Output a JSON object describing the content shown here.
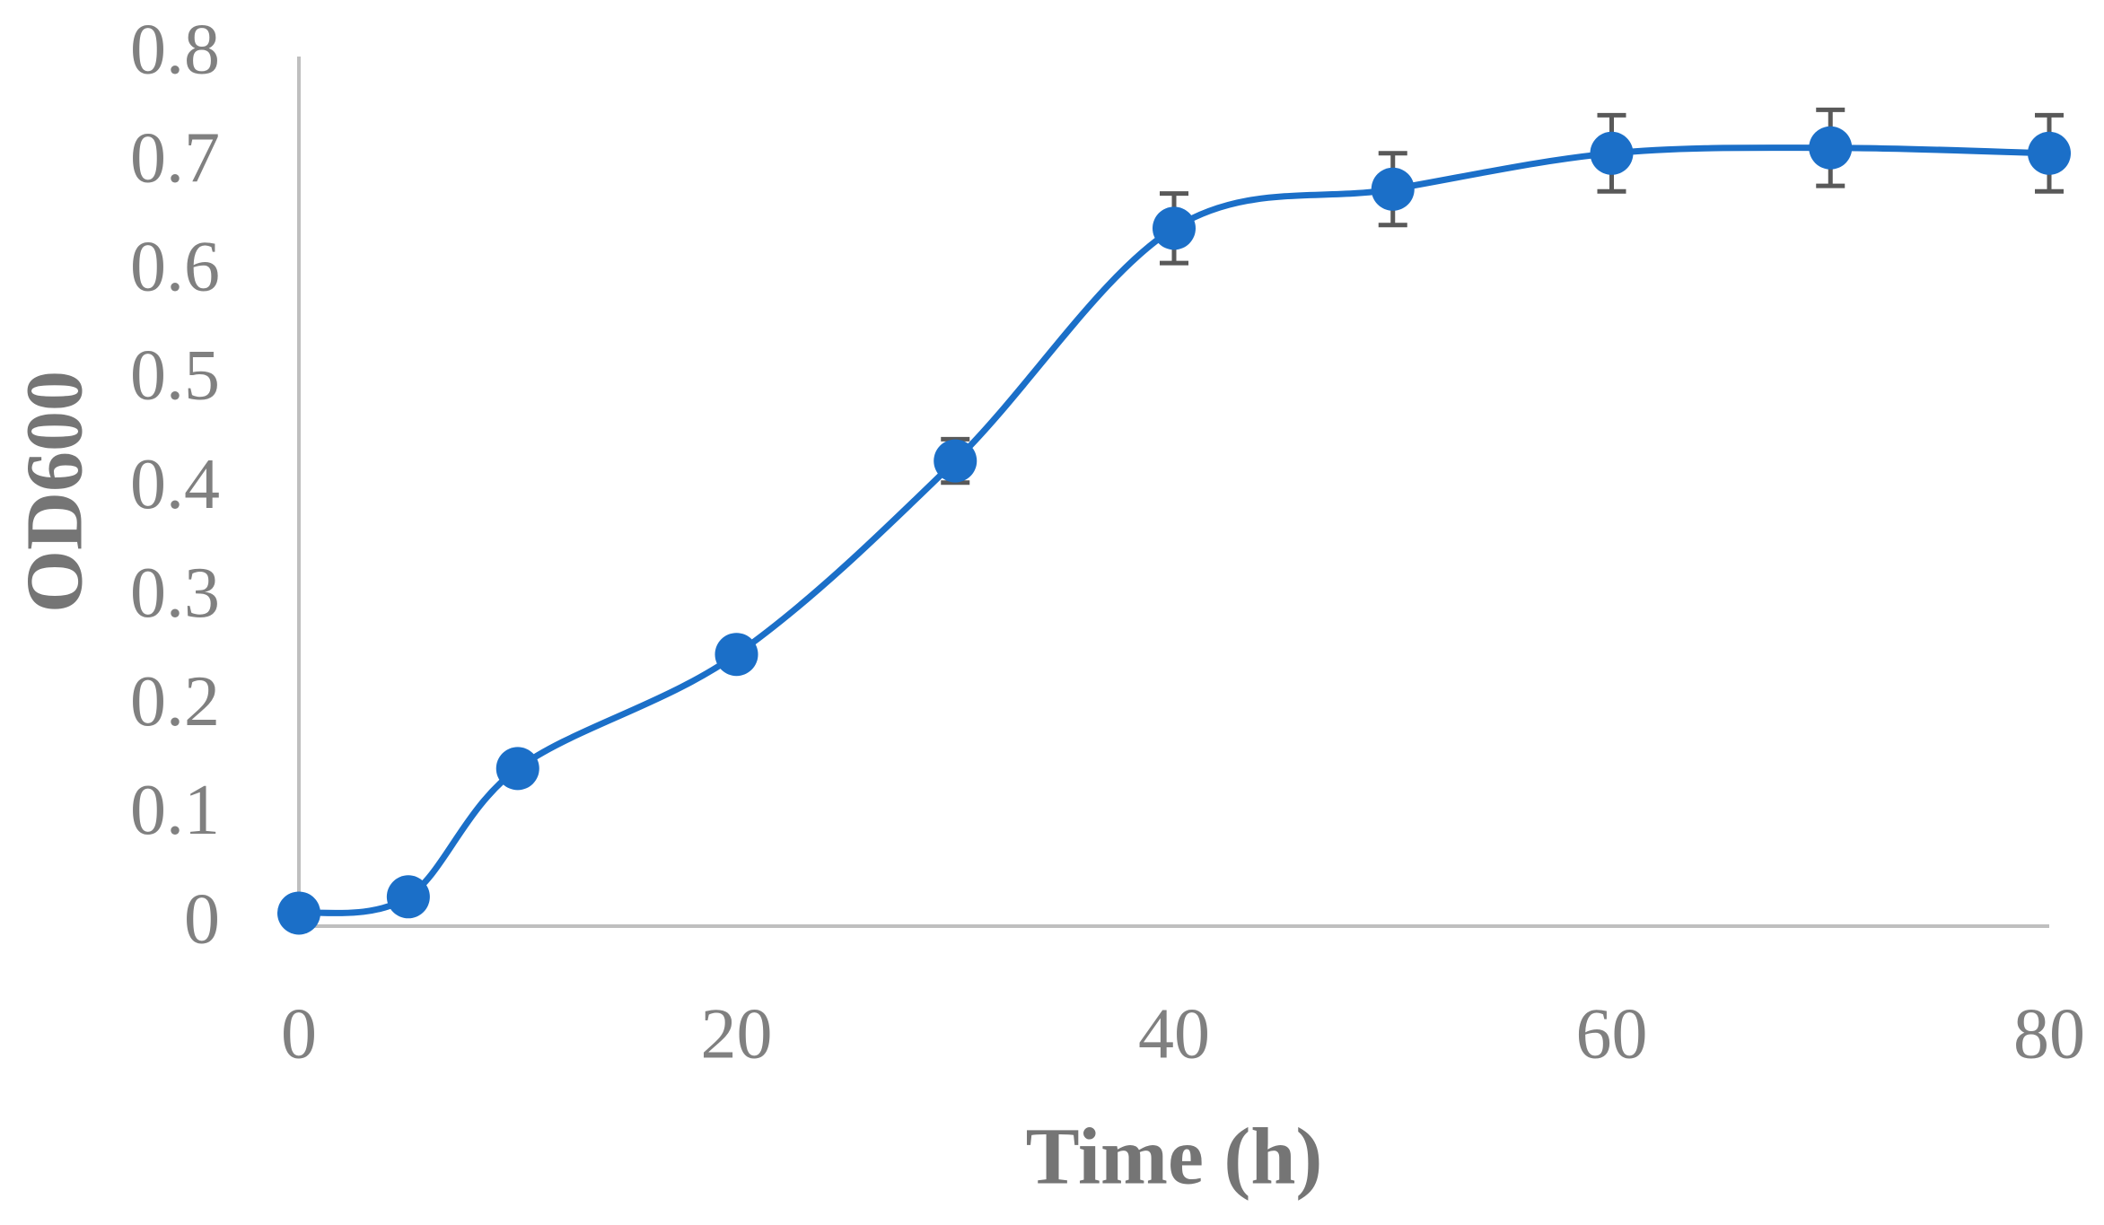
{
  "chart_data": {
    "type": "line",
    "xlabel": "Time (h)",
    "ylabel": "OD600",
    "x": [
      0,
      5,
      10,
      20,
      30,
      40,
      50,
      60,
      70,
      80
    ],
    "series": [
      {
        "color": "#1b6fc8",
        "error_color": "#595959",
        "values": [
          0.012,
          0.027,
          0.145,
          0.25,
          0.428,
          0.642,
          0.678,
          0.711,
          0.716,
          0.711
        ],
        "errors": [
          0.003,
          0.004,
          0.006,
          0.006,
          0.02,
          0.032,
          0.033,
          0.035,
          0.035,
          0.035
        ]
      }
    ],
    "xlim": [
      0,
      80
    ],
    "xticks": [
      0,
      20,
      40,
      60,
      80
    ],
    "ylim": [
      0,
      0.8
    ],
    "yticks": [
      0,
      0.1,
      0.2,
      0.3,
      0.4,
      0.5,
      0.6,
      0.7,
      0.8
    ],
    "smooth": true,
    "grid": false
  }
}
